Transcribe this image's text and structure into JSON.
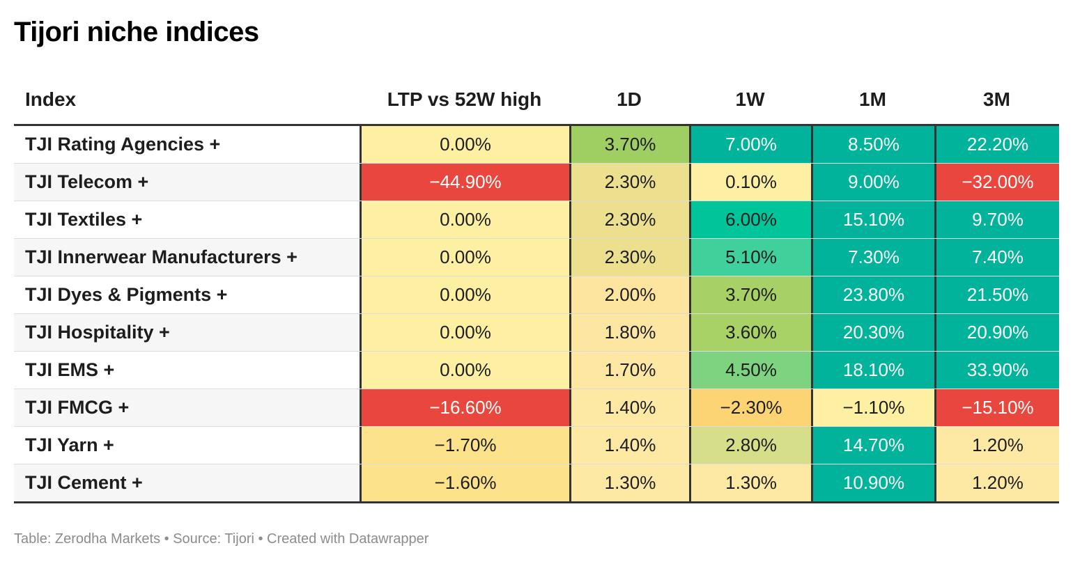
{
  "title": "Tijori niche indices",
  "footer": "Table: Zerodha Markets • Source: Tijori • Created with Datawrapper",
  "columns": [
    "Index",
    "LTP vs 52W high",
    "1D",
    "1W",
    "1M",
    "3M"
  ],
  "chart_data": {
    "type": "table",
    "title": "Tijori niche indices",
    "columns": [
      "Index",
      "LTP vs 52W high",
      "1D",
      "1W",
      "1M",
      "3M"
    ],
    "rows": [
      {
        "name": "TJI Rating Agencies +",
        "cells": [
          {
            "text": "0.00%",
            "bg": "#fdf0a2",
            "fg": "#1d1d1d"
          },
          {
            "text": "3.70%",
            "bg": "#9fcf62",
            "fg": "#1d1d1d"
          },
          {
            "text": "7.00%",
            "bg": "#00b39a",
            "fg": "#ffffff"
          },
          {
            "text": "8.50%",
            "bg": "#00b39a",
            "fg": "#ffffff"
          },
          {
            "text": "22.20%",
            "bg": "#00b39a",
            "fg": "#ffffff"
          }
        ]
      },
      {
        "name": "TJI Telecom +",
        "cells": [
          {
            "text": "−44.90%",
            "bg": "#e9473d",
            "fg": "#ffffff"
          },
          {
            "text": "2.30%",
            "bg": "#ece08e",
            "fg": "#1d1d1d"
          },
          {
            "text": "0.10%",
            "bg": "#fdf0a2",
            "fg": "#1d1d1d"
          },
          {
            "text": "9.00%",
            "bg": "#00b39a",
            "fg": "#ffffff"
          },
          {
            "text": "−32.00%",
            "bg": "#e9473d",
            "fg": "#ffffff"
          }
        ]
      },
      {
        "name": "TJI Textiles +",
        "cells": [
          {
            "text": "0.00%",
            "bg": "#fdf0a2",
            "fg": "#1d1d1d"
          },
          {
            "text": "2.30%",
            "bg": "#ece08e",
            "fg": "#1d1d1d"
          },
          {
            "text": "6.00%",
            "bg": "#00c49a",
            "fg": "#1d1d1d"
          },
          {
            "text": "15.10%",
            "bg": "#00b39a",
            "fg": "#ffffff"
          },
          {
            "text": "9.70%",
            "bg": "#00b39a",
            "fg": "#ffffff"
          }
        ]
      },
      {
        "name": "TJI Innerwear Manufacturers +",
        "cells": [
          {
            "text": "0.00%",
            "bg": "#fdf0a2",
            "fg": "#1d1d1d"
          },
          {
            "text": "2.30%",
            "bg": "#ece08e",
            "fg": "#1d1d1d"
          },
          {
            "text": "5.10%",
            "bg": "#3fd09c",
            "fg": "#1d1d1d"
          },
          {
            "text": "7.30%",
            "bg": "#00b39a",
            "fg": "#ffffff"
          },
          {
            "text": "7.40%",
            "bg": "#00b39a",
            "fg": "#ffffff"
          }
        ]
      },
      {
        "name": "TJI Dyes & Pigments +",
        "cells": [
          {
            "text": "0.00%",
            "bg": "#fdf0a2",
            "fg": "#1d1d1d"
          },
          {
            "text": "2.00%",
            "bg": "#fde5a0",
            "fg": "#1d1d1d"
          },
          {
            "text": "3.70%",
            "bg": "#a7d166",
            "fg": "#1d1d1d"
          },
          {
            "text": "23.80%",
            "bg": "#00b39a",
            "fg": "#ffffff"
          },
          {
            "text": "21.50%",
            "bg": "#00b39a",
            "fg": "#ffffff"
          }
        ]
      },
      {
        "name": "TJI Hospitality +",
        "cells": [
          {
            "text": "0.00%",
            "bg": "#fdf0a2",
            "fg": "#1d1d1d"
          },
          {
            "text": "1.80%",
            "bg": "#fde6a2",
            "fg": "#1d1d1d"
          },
          {
            "text": "3.60%",
            "bg": "#a9d266",
            "fg": "#1d1d1d"
          },
          {
            "text": "20.30%",
            "bg": "#00b39a",
            "fg": "#ffffff"
          },
          {
            "text": "20.90%",
            "bg": "#00b39a",
            "fg": "#ffffff"
          }
        ]
      },
      {
        "name": "TJI EMS +",
        "cells": [
          {
            "text": "0.00%",
            "bg": "#fdf0a2",
            "fg": "#1d1d1d"
          },
          {
            "text": "1.70%",
            "bg": "#fde7a3",
            "fg": "#1d1d1d"
          },
          {
            "text": "4.50%",
            "bg": "#7dd380",
            "fg": "#1d1d1d"
          },
          {
            "text": "18.10%",
            "bg": "#00b39a",
            "fg": "#ffffff"
          },
          {
            "text": "33.90%",
            "bg": "#00b39a",
            "fg": "#ffffff"
          }
        ]
      },
      {
        "name": "TJI FMCG +",
        "cells": [
          {
            "text": "−16.60%",
            "bg": "#e9473d",
            "fg": "#ffffff"
          },
          {
            "text": "1.40%",
            "bg": "#fde8a4",
            "fg": "#1d1d1d"
          },
          {
            "text": "−2.30%",
            "bg": "#fdd473",
            "fg": "#1d1d1d"
          },
          {
            "text": "−1.10%",
            "bg": "#fdf0a2",
            "fg": "#1d1d1d"
          },
          {
            "text": "−15.10%",
            "bg": "#e9473d",
            "fg": "#ffffff"
          }
        ]
      },
      {
        "name": "TJI Yarn +",
        "cells": [
          {
            "text": "−1.70%",
            "bg": "#fde28c",
            "fg": "#1d1d1d"
          },
          {
            "text": "1.40%",
            "bg": "#fde8a4",
            "fg": "#1d1d1d"
          },
          {
            "text": "2.80%",
            "bg": "#d6de8a",
            "fg": "#1d1d1d"
          },
          {
            "text": "14.70%",
            "bg": "#00b39a",
            "fg": "#ffffff"
          },
          {
            "text": "1.20%",
            "bg": "#fde8a4",
            "fg": "#1d1d1d"
          }
        ]
      },
      {
        "name": "TJI Cement +",
        "cells": [
          {
            "text": "−1.60%",
            "bg": "#fde28c",
            "fg": "#1d1d1d"
          },
          {
            "text": "1.30%",
            "bg": "#fde8a4",
            "fg": "#1d1d1d"
          },
          {
            "text": "1.30%",
            "bg": "#fde8a4",
            "fg": "#1d1d1d"
          },
          {
            "text": "10.90%",
            "bg": "#00b39a",
            "fg": "#ffffff"
          },
          {
            "text": "1.20%",
            "bg": "#fde8a4",
            "fg": "#1d1d1d"
          }
        ]
      }
    ]
  }
}
